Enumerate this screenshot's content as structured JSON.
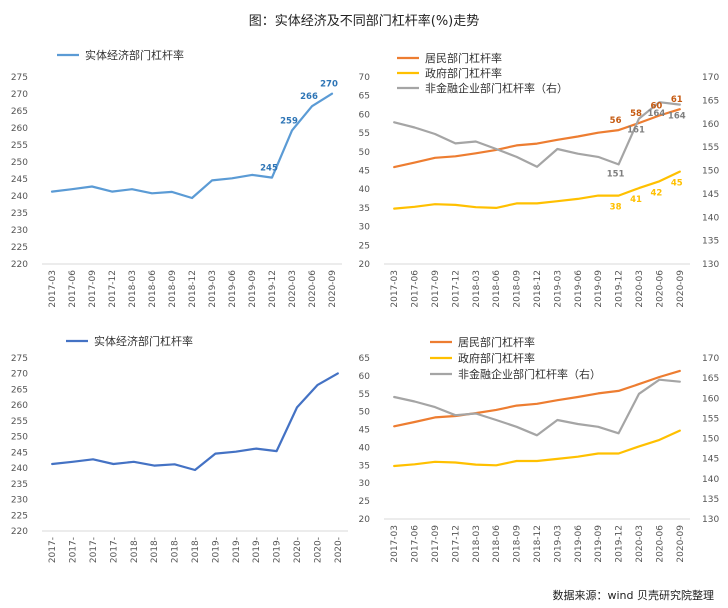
{
  "figure": {
    "title": "图：实体经济及不同部门杠杆率(%)走势",
    "source": "数据来源：wind 贝壳研究院整理"
  },
  "chart_data": [
    {
      "type": "line",
      "x": [
        "2017-03",
        "2017-06",
        "2017-09",
        "2017-12",
        "2018-03",
        "2018-06",
        "2018-09",
        "2018-12",
        "2019-03",
        "2019-06",
        "2019-09",
        "2019-12",
        "2020-03",
        "2020-06",
        "2020-09"
      ],
      "ylim": [
        220,
        275
      ],
      "yticks": [
        220,
        225,
        230,
        235,
        240,
        245,
        250,
        255,
        260,
        265,
        270,
        275
      ],
      "series": [
        {
          "name": "实体经济部门杠杆率",
          "color": "#5b9bd5",
          "values": [
            241.3,
            242.0,
            242.8,
            241.3,
            242.0,
            240.8,
            241.2,
            239.4,
            244.6,
            245.2,
            246.2,
            245.4,
            259.3,
            266.4,
            270.1
          ]
        }
      ],
      "data_labels": [
        {
          "index": 11,
          "text": "245"
        },
        {
          "index": 12,
          "text": "259"
        },
        {
          "index": 13,
          "text": "266"
        },
        {
          "index": 14,
          "text": "270"
        }
      ],
      "legend": "top-left",
      "grid": false
    },
    {
      "type": "line",
      "x": [
        "2017-03",
        "2017-06",
        "2017-09",
        "2017-12",
        "2018-03",
        "2018-06",
        "2018-09",
        "2018-12",
        "2019-03",
        "2019-06",
        "2019-09",
        "2019-12",
        "2020-03",
        "2020-06",
        "2020-09"
      ],
      "ylim": [
        20,
        70
      ],
      "yticks": [
        20,
        25,
        30,
        35,
        40,
        45,
        50,
        55,
        60,
        65,
        70
      ],
      "y2lim": [
        130,
        170
      ],
      "y2ticks": [
        130,
        135,
        140,
        145,
        150,
        155,
        160,
        165,
        170
      ],
      "series": [
        {
          "name": "居民部门杠杆率",
          "color": "#ed7d31",
          "axis": "left",
          "values": [
            45.9,
            47.1,
            48.4,
            48.8,
            49.6,
            50.5,
            51.7,
            52.2,
            53.2,
            54.1,
            55.1,
            55.8,
            57.7,
            59.7,
            61.4
          ]
        },
        {
          "name": "政府部门杠杆率",
          "color": "#ffc000",
          "axis": "left",
          "values": [
            34.8,
            35.3,
            36.0,
            35.8,
            35.2,
            35.0,
            36.2,
            36.2,
            36.8,
            37.4,
            38.3,
            38.3,
            40.3,
            42.1,
            44.7
          ]
        },
        {
          "name": "非金融企业部门杠杆率（右）",
          "color": "#a5a5a5",
          "axis": "right",
          "values": [
            160.3,
            159.2,
            157.8,
            155.8,
            156.2,
            154.6,
            152.9,
            150.8,
            154.6,
            153.6,
            152.9,
            151.3,
            161.1,
            164.6,
            164.1
          ]
        }
      ],
      "data_labels": [
        {
          "series": 0,
          "index": 11,
          "text": "56"
        },
        {
          "series": 0,
          "index": 12,
          "text": "58"
        },
        {
          "series": 0,
          "index": 13,
          "text": "60"
        },
        {
          "series": 0,
          "index": 14,
          "text": "61"
        },
        {
          "series": 1,
          "index": 11,
          "text": "38"
        },
        {
          "series": 1,
          "index": 12,
          "text": "41"
        },
        {
          "series": 1,
          "index": 13,
          "text": "42"
        },
        {
          "series": 1,
          "index": 14,
          "text": "45"
        },
        {
          "series": 2,
          "index": 11,
          "text": "151"
        },
        {
          "series": 2,
          "index": 12,
          "text": "161"
        },
        {
          "series": 2,
          "index": 13,
          "text": "164"
        },
        {
          "series": 2,
          "index": 14,
          "text": "164"
        }
      ],
      "legend": "top-left",
      "grid": false
    },
    {
      "type": "line",
      "x": [
        "2017-03",
        "2017-06",
        "2017-09",
        "2017-12",
        "2018-03",
        "2018-06",
        "2018-09",
        "2018-12",
        "2019-03",
        "2019-06",
        "2019-09",
        "2019-12",
        "2020-03",
        "2020-06",
        "2020-09"
      ],
      "xticklabels": [
        "2017-",
        "2017-",
        "2017-",
        "2017-",
        "2018-",
        "2018-",
        "2018-",
        "2018-",
        "2019-",
        "2019-",
        "2019-",
        "2019-",
        "2020-",
        "2020-",
        "2020-"
      ],
      "ylim": [
        220,
        275
      ],
      "yticks": [
        220,
        225,
        230,
        235,
        240,
        245,
        250,
        255,
        260,
        265,
        270,
        275
      ],
      "series": [
        {
          "name": "实体经济部门杠杆率",
          "color": "#4472c4",
          "values": [
            241.3,
            242.0,
            242.8,
            241.3,
            242.0,
            240.8,
            241.2,
            239.4,
            244.6,
            245.2,
            246.2,
            245.4,
            259.3,
            266.4,
            270.1
          ]
        }
      ],
      "legend": "top-left",
      "grid": false
    },
    {
      "type": "line",
      "x": [
        "2017-03",
        "2017-06",
        "2017-09",
        "2017-12",
        "2018-03",
        "2018-06",
        "2018-09",
        "2018-12",
        "2019-03",
        "2019-06",
        "2019-09",
        "2019-12",
        "2020-03",
        "2020-06",
        "2020-09"
      ],
      "ylim": [
        20,
        65
      ],
      "yticks": [
        20,
        25,
        30,
        35,
        40,
        45,
        50,
        55,
        60,
        65
      ],
      "y2lim": [
        130,
        170
      ],
      "y2ticks": [
        130,
        135,
        140,
        145,
        150,
        155,
        160,
        165,
        170
      ],
      "series": [
        {
          "name": "居民部门杠杆率",
          "color": "#ed7d31",
          "axis": "left",
          "values": [
            45.9,
            47.1,
            48.4,
            48.8,
            49.6,
            50.5,
            51.7,
            52.2,
            53.2,
            54.1,
            55.1,
            55.8,
            57.7,
            59.7,
            61.4
          ]
        },
        {
          "name": "政府部门杠杆率",
          "color": "#ffc000",
          "axis": "left",
          "values": [
            34.8,
            35.3,
            36.0,
            35.8,
            35.2,
            35.0,
            36.2,
            36.2,
            36.8,
            37.4,
            38.3,
            38.3,
            40.3,
            42.1,
            44.7
          ]
        },
        {
          "name": "非金融企业部门杠杆率（右）",
          "color": "#a5a5a5",
          "axis": "right",
          "values": [
            160.3,
            159.2,
            157.8,
            155.8,
            156.2,
            154.6,
            152.9,
            150.8,
            154.6,
            153.6,
            152.9,
            151.3,
            161.1,
            164.6,
            164.1
          ]
        }
      ],
      "legend": "top-left",
      "grid": false
    }
  ]
}
